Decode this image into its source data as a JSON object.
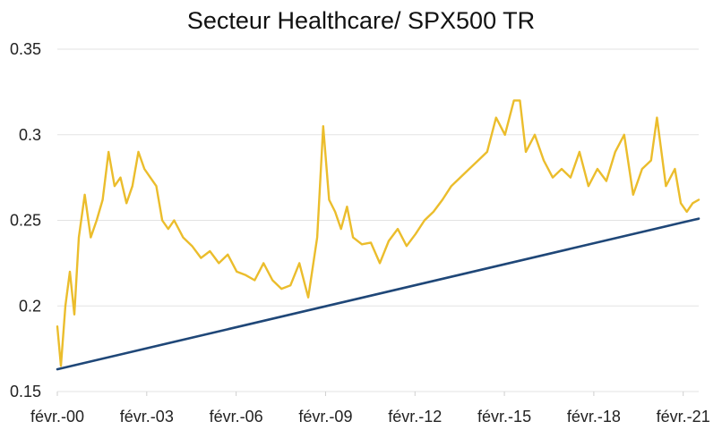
{
  "chart_data": {
    "type": "line",
    "title": "Secteur Healthcare/ SPX500 TR",
    "xlabel": "",
    "ylabel": "",
    "ylim": [
      0.15,
      0.35
    ],
    "yticks": [
      "0.15",
      "0.2",
      "0.25",
      "0.3",
      "0.35"
    ],
    "xlim": [
      2000.08,
      2021.6
    ],
    "xticks": [
      {
        "label": "févr.-00",
        "value": 2000.08
      },
      {
        "label": "févr.-03",
        "value": 2003.08
      },
      {
        "label": "févr.-06",
        "value": 2006.08
      },
      {
        "label": "févr.-09",
        "value": 2009.08
      },
      {
        "label": "févr.-12",
        "value": 2012.08
      },
      {
        "label": "févr.-15",
        "value": 2015.08
      },
      {
        "label": "févr.-18",
        "value": 2018.08
      },
      {
        "label": "févr.-21",
        "value": 2021.08
      }
    ],
    "grid": true,
    "colors": {
      "ratio": "#ebbd2c",
      "trend": "#1f4778"
    },
    "series": [
      {
        "key": "ratio",
        "x": [
          2000.08,
          2000.2,
          2000.35,
          2000.5,
          2000.65,
          2000.8,
          2001.0,
          2001.2,
          2001.4,
          2001.6,
          2001.8,
          2002.0,
          2002.2,
          2002.4,
          2002.6,
          2002.8,
          2003.0,
          2003.2,
          2003.4,
          2003.6,
          2003.8,
          2004.0,
          2004.3,
          2004.6,
          2004.9,
          2005.2,
          2005.5,
          2005.8,
          2006.1,
          2006.4,
          2006.7,
          2007.0,
          2007.3,
          2007.6,
          2007.9,
          2008.2,
          2008.5,
          2008.8,
          2009.0,
          2009.2,
          2009.4,
          2009.6,
          2009.8,
          2010.0,
          2010.3,
          2010.6,
          2010.9,
          2011.2,
          2011.5,
          2011.8,
          2012.1,
          2012.4,
          2012.7,
          2013.0,
          2013.3,
          2013.6,
          2013.9,
          2014.2,
          2014.5,
          2014.8,
          2015.1,
          2015.4,
          2015.6,
          2015.8,
          2016.1,
          2016.4,
          2016.7,
          2017.0,
          2017.3,
          2017.6,
          2017.9,
          2018.2,
          2018.5,
          2018.8,
          2019.1,
          2019.4,
          2019.7,
          2020.0,
          2020.2,
          2020.5,
          2020.8,
          2021.0,
          2021.2,
          2021.4,
          2021.6
        ],
        "y": [
          0.188,
          0.165,
          0.2,
          0.22,
          0.195,
          0.24,
          0.265,
          0.24,
          0.25,
          0.262,
          0.29,
          0.27,
          0.275,
          0.26,
          0.27,
          0.29,
          0.28,
          0.275,
          0.27,
          0.25,
          0.245,
          0.25,
          0.24,
          0.235,
          0.228,
          0.232,
          0.225,
          0.23,
          0.22,
          0.218,
          0.215,
          0.225,
          0.215,
          0.21,
          0.212,
          0.225,
          0.205,
          0.24,
          0.305,
          0.262,
          0.255,
          0.245,
          0.258,
          0.24,
          0.236,
          0.237,
          0.225,
          0.238,
          0.245,
          0.235,
          0.242,
          0.25,
          0.255,
          0.262,
          0.27,
          0.275,
          0.28,
          0.285,
          0.29,
          0.31,
          0.3,
          0.32,
          0.32,
          0.29,
          0.3,
          0.285,
          0.275,
          0.28,
          0.275,
          0.29,
          0.27,
          0.28,
          0.273,
          0.29,
          0.3,
          0.265,
          0.28,
          0.285,
          0.31,
          0.27,
          0.28,
          0.26,
          0.255,
          0.26,
          0.262
        ]
      },
      {
        "key": "trend",
        "x": [
          2000.08,
          2021.6
        ],
        "y": [
          0.163,
          0.251
        ]
      }
    ]
  }
}
